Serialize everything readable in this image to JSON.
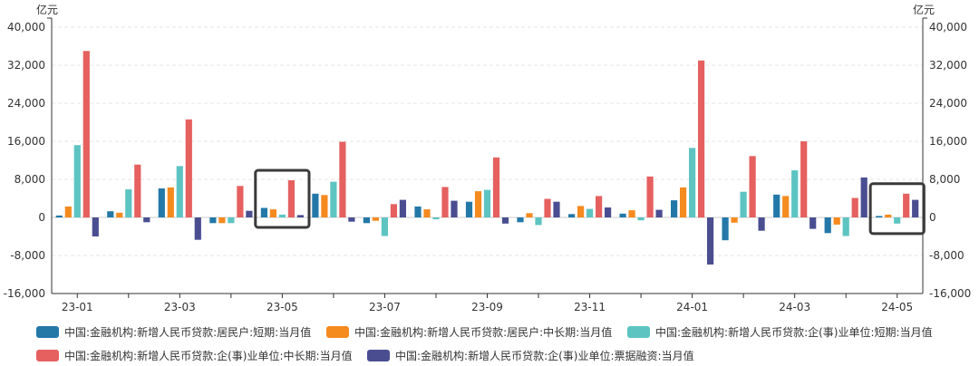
{
  "chart_data": {
    "type": "bar",
    "title": "",
    "xlabel": "",
    "ylabel": "亿元",
    "ylabel_right": "亿元",
    "ylim": [
      -16000,
      40000
    ],
    "yticks": [
      -16000,
      -8000,
      0,
      8000,
      16000,
      24000,
      32000,
      40000
    ],
    "ytick_labels": [
      "-16,000",
      "-8,000",
      "0",
      "8,000",
      "16,000",
      "24,000",
      "32,000",
      "40,000"
    ],
    "categories": [
      "23-01",
      "23-02",
      "23-03",
      "23-04",
      "23-05",
      "23-06",
      "23-07",
      "23-08",
      "23-09",
      "23-10",
      "23-11",
      "23-12",
      "24-01",
      "24-02",
      "24-03",
      "24-04",
      "24-05"
    ],
    "xtick_labels": [
      "23-01",
      "23-03",
      "23-05",
      "23-07",
      "23-09",
      "23-11",
      "24-01",
      "24-03",
      "24-05"
    ],
    "grid": true,
    "legend_position": "bottom",
    "series": [
      {
        "name": "中国:金融机构:新增人民币贷款:居民户:短期:当月值",
        "color": "#2478a8",
        "values": [
          400,
          1300,
          6100,
          -1200,
          2000,
          5000,
          -1200,
          2300,
          3300,
          -1000,
          700,
          800,
          3600,
          -4800,
          4800,
          -3300,
          300
        ]
      },
      {
        "name": "中国:金融机构:新增人民币贷款:居民户:中长期:当月值",
        "color": "#f58a1f",
        "values": [
          2300,
          1000,
          6300,
          -1200,
          1700,
          4700,
          -700,
          1700,
          5500,
          900,
          2400,
          1500,
          6300,
          -1100,
          4500,
          -1500,
          600
        ]
      },
      {
        "name": "中国:金融机构:新增人民币贷款:企(事)业单位:短期:当月值",
        "color": "#5ec4c2",
        "values": [
          15200,
          5900,
          10800,
          -1200,
          600,
          7500,
          -3900,
          -400,
          5800,
          -1600,
          1800,
          -600,
          14600,
          5400,
          9900,
          -3900,
          -1300
        ]
      },
      {
        "name": "中国:金融机构:新增人民币贷款:企(事)业单位:中长期:当月值",
        "color": "#e5605f",
        "values": [
          35000,
          11100,
          20600,
          6600,
          7800,
          15900,
          2800,
          6400,
          12600,
          3900,
          4500,
          8600,
          33000,
          12900,
          16000,
          4100,
          5000
        ]
      },
      {
        "name": "中国:金融机构:新增人民币贷款:企(事)业单位:票据融资:当月值",
        "color": "#4a4e91",
        "values": [
          -4000,
          -1000,
          -4700,
          1400,
          500,
          -900,
          3700,
          3500,
          -1300,
          3300,
          2100,
          1600,
          -9900,
          -2800,
          -2400,
          8400,
          3700
        ]
      }
    ],
    "highlight_boxes": [
      {
        "category": "23-05"
      },
      {
        "category": "24-05"
      }
    ]
  }
}
